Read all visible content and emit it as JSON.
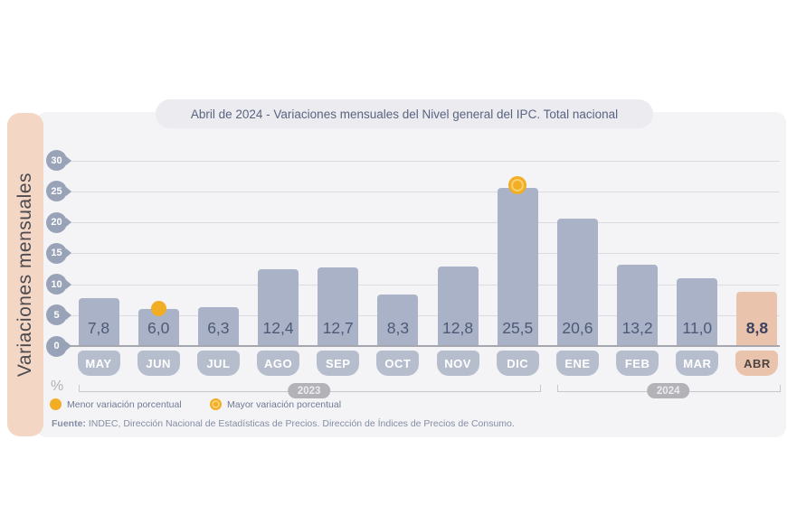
{
  "title": "Abril de 2024 - Variaciones mensuales del Nivel general del IPC. Total nacional",
  "y_axis_label": "Variaciones mensuales",
  "unit_label": "%",
  "legend": {
    "min": "Menor variación porcentual",
    "max": "Mayor variación porcentual"
  },
  "source": {
    "prefix": "Fuente:",
    "text": " INDEC, Dirección Nacional de Estadísticas de Precios. Dirección de Índices de Precios de Consumo."
  },
  "colors": {
    "panel": "#f4f4f7",
    "bar": "#a9b2c6",
    "bar_highlight": "#e9c3ac",
    "month_badge": "#b6bece",
    "sidebar": "#f4d6c5",
    "accent_yellow": "#f1ad24",
    "accent_yellow_ring": "#f8d06e",
    "tick_badge": "#99a3b8",
    "value_text": "#4e5977"
  },
  "chart_data": {
    "type": "bar",
    "title": "Abril de 2024 - Variaciones mensuales del Nivel general del IPC. Total nacional",
    "ylabel": "Variaciones mensuales",
    "unit": "%",
    "grid": true,
    "ylim": [
      0,
      30
    ],
    "yticks": [
      0,
      5,
      10,
      15,
      20,
      25,
      30
    ],
    "categories": [
      "MAY",
      "JUN",
      "JUL",
      "AGO",
      "SEP",
      "OCT",
      "NOV",
      "DIC",
      "ENE",
      "FEB",
      "MAR",
      "ABR"
    ],
    "values": [
      7.8,
      6.0,
      6.3,
      12.4,
      12.7,
      8.3,
      12.8,
      25.5,
      20.6,
      13.2,
      11.0,
      8.8
    ],
    "value_labels": [
      "7,8",
      "6,0",
      "6,3",
      "12,4",
      "12,7",
      "8,3",
      "12,8",
      "25,5",
      "20,6",
      "13,2",
      "11,0",
      "8,8"
    ],
    "highlight_category": "ABR",
    "min_marker": {
      "category": "JUN",
      "value": 6.0,
      "label": "Menor variación porcentual",
      "style": "solid-dot"
    },
    "max_marker": {
      "category": "DIC",
      "value": 25.5,
      "label": "Mayor variación porcentual",
      "style": "ringed-dot"
    },
    "year_groups": [
      {
        "label": "2023",
        "from": "MAY",
        "to": "DIC"
      },
      {
        "label": "2024",
        "from": "ENE",
        "to": "ABR"
      }
    ]
  }
}
